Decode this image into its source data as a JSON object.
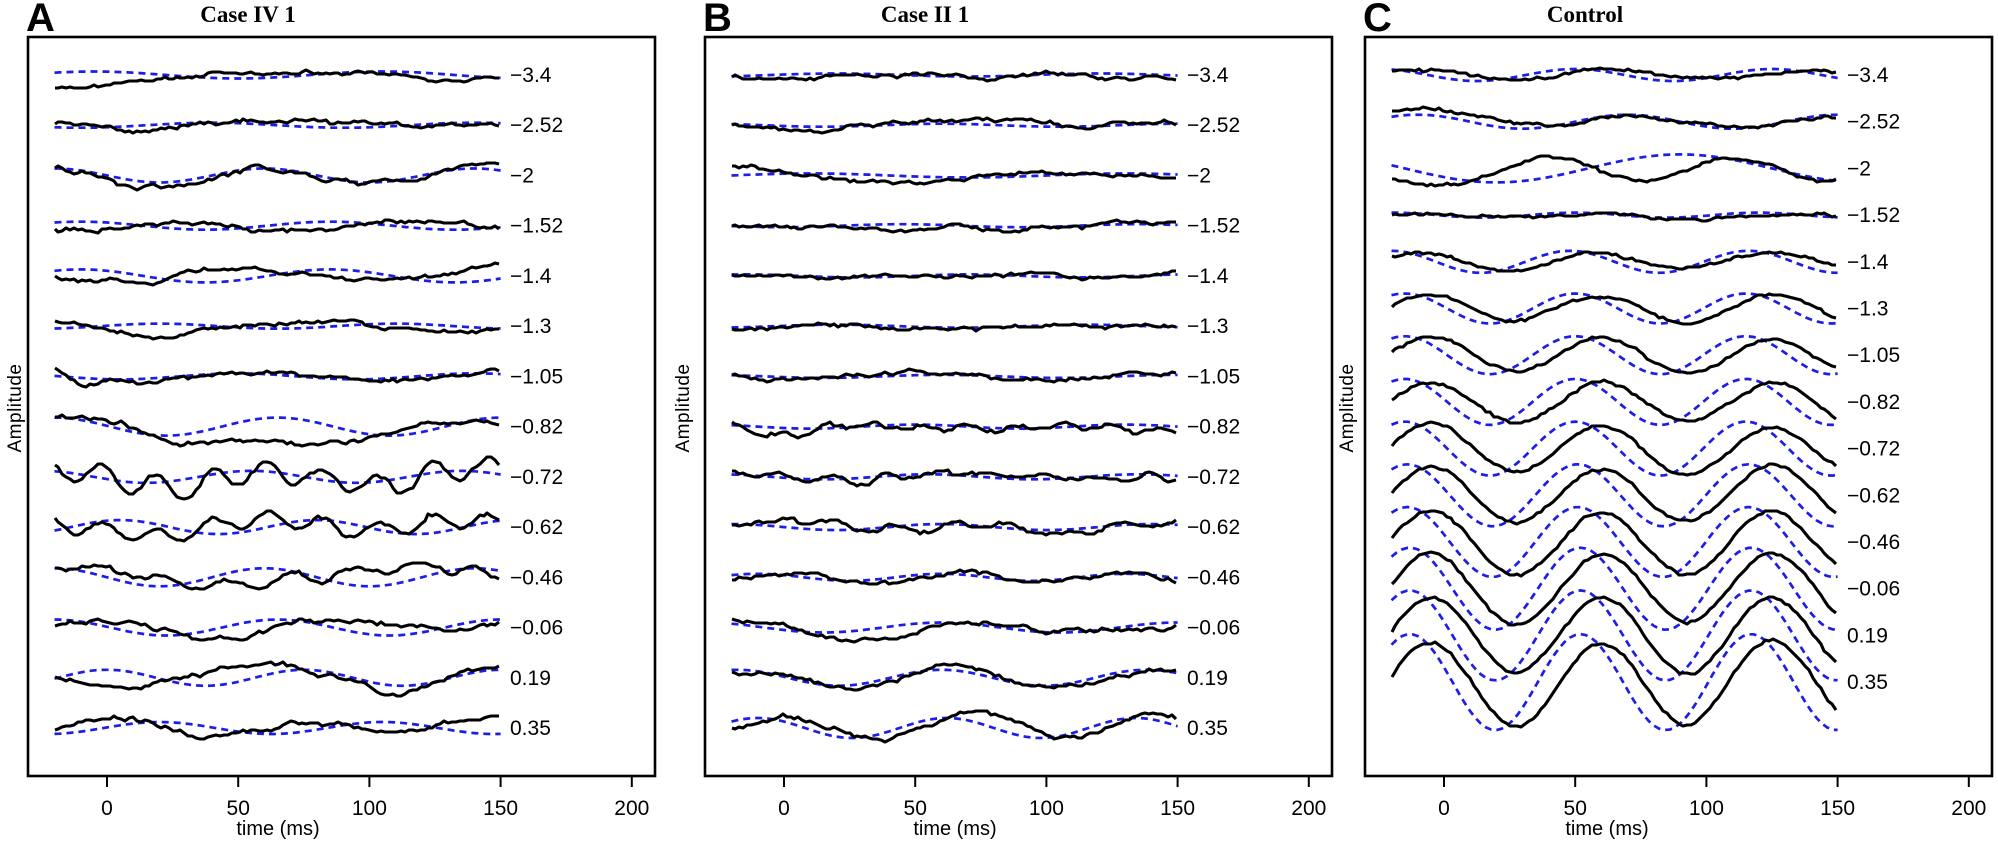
{
  "chart_data": {
    "type": "line",
    "xlabel": "time (ms)",
    "ylabel": "Amplitude",
    "x_ticks": [
      0,
      50,
      100,
      150,
      200
    ],
    "x_range_ms": [
      -20,
      150
    ],
    "amplitude_units": "arbitrary (px, unlabeled axis)",
    "legend": {
      "recorded_trace": "black solid",
      "model_trace": "blue dashed"
    },
    "colors": {
      "recorded": "#000000",
      "model": "#1d1de8",
      "background": "#ffffff",
      "text": "#000000"
    },
    "panels": [
      {
        "letter": "A",
        "title": "Case IV 1",
        "rows": [
          {
            "label": "−3.4",
            "black": {
              "amp": 3,
              "period": 120,
              "peak": 70,
              "noise": 1.6,
              "drift": [
                [
                  -20,
                  -13
                ],
                [
                  10,
                  -2
                ],
                [
                  40,
                  3
                ],
                [
                  150,
                  0
                ]
              ]
            },
            "blue": {
              "amp": 3.5,
              "period": 110,
              "peak": -5
            }
          },
          {
            "label": "−2.52",
            "black": {
              "amp": 4,
              "period": 110,
              "peak": 70,
              "noise": 1.6
            },
            "blue": {
              "amp": 2.5,
              "period": 100,
              "peak": 40
            }
          },
          {
            "label": "−2",
            "black": {
              "amp": 7,
              "period": 85,
              "peak": 60,
              "noise": 2.2,
              "drift": [
                [
                  -20,
                  2
                ],
                [
                  30,
                  -6
                ],
                [
                  60,
                  2
                ],
                [
                  150,
                  0
                ]
              ]
            },
            "blue": {
              "amp": 7,
              "period": 80,
              "peak": 60
            }
          },
          {
            "label": "−1.52",
            "black": {
              "amp": 6,
              "period": 95,
              "peak": 115,
              "noise": 2.0
            },
            "blue": {
              "amp": 4,
              "period": 95,
              "peak": -10
            }
          },
          {
            "label": "−1.4",
            "black": {
              "amp": 8,
              "period": 100,
              "peak": 55,
              "noise": 1.6
            },
            "blue": {
              "amp": 6.5,
              "period": 95,
              "peak": -10
            }
          },
          {
            "label": "−1.3",
            "black": {
              "amp": 7,
              "period": 110,
              "peak": 75,
              "noise": 1.6
            },
            "blue": {
              "amp": 2.5,
              "period": 90,
              "peak": 20
            }
          },
          {
            "label": "−1.05",
            "black": {
              "amp": 5,
              "period": 100,
              "peak": 60,
              "noise": 1.7,
              "drift": [
                [
                  -20,
                  8
                ],
                [
                  -10,
                  -8
                ],
                [
                  5,
                  0
                ],
                [
                  150,
                  0
                ]
              ]
            },
            "blue": {
              "amp": 3,
              "period": 90,
              "peak": 50
            }
          },
          {
            "label": "−0.82",
            "black": {
              "amp": 5,
              "period": 90,
              "peak": 130,
              "noise": 2.0,
              "drift": [
                [
                  -20,
                  14
                ],
                [
                  5,
                  10
                ],
                [
                  25,
                  -18
                ],
                [
                  60,
                  -16
                ],
                [
                  110,
                  -6
                ],
                [
                  150,
                  8
                ]
              ]
            },
            "blue": {
              "amp": 9,
              "period": 85,
              "peak": 65
            }
          },
          {
            "label": "−0.72",
            "black": {
              "amp": 6,
              "period": 80,
              "peak": 60,
              "noise": 2.2,
              "osc": {
                "amp": 11,
                "period": 21
              }
            },
            "blue": {
              "amp": 6,
              "period": 80,
              "peak": 55
            }
          },
          {
            "label": "−0.62",
            "black": {
              "amp": 5,
              "period": 80,
              "peak": 60,
              "noise": 2.0,
              "osc": {
                "amp": 8,
                "period": 21
              }
            },
            "blue": {
              "amp": 7,
              "period": 75,
              "peak": 5
            }
          },
          {
            "label": "−0.46",
            "black": {
              "amp": 11,
              "period": 130,
              "peak": -15,
              "noise": 2.2,
              "osc": {
                "amp": 4,
                "period": 24
              }
            },
            "blue": {
              "amp": 9,
              "period": 80,
              "peak": 60
            }
          },
          {
            "label": "−0.06",
            "black": {
              "amp": 6,
              "period": 85,
              "peak": 0,
              "noise": 2.2
            },
            "blue": {
              "amp": 8,
              "period": 85,
              "peak": 65
            }
          },
          {
            "label": "0.19",
            "black": {
              "amp": 8,
              "period": 100,
              "peak": 55,
              "noise": 2.0,
              "drift": [
                [
                  -20,
                  0
                ],
                [
                  90,
                  0
                ],
                [
                  110,
                  -12
                ],
                [
                  130,
                  4
                ],
                [
                  150,
                  6
                ]
              ]
            },
            "blue": {
              "amp": 8,
              "period": 75,
              "peak": 75
            }
          },
          {
            "label": "0.35",
            "black": {
              "amp": 7,
              "period": 70,
              "peak": 75,
              "noise": 2.0
            },
            "blue": {
              "amp": 6,
              "period": 85,
              "peak": 20
            }
          }
        ]
      },
      {
        "letter": "B",
        "title": "Case II 1",
        "rows": [
          {
            "label": "−3.4",
            "black": {
              "amp": 2,
              "period": 90,
              "peak": 30,
              "noise": 1.7
            },
            "blue": {
              "amp": 1.5,
              "period": 100,
              "peak": 20
            }
          },
          {
            "label": "−2.52",
            "black": {
              "amp": 2,
              "period": 80,
              "peak": 60,
              "noise": 1.7
            },
            "blue": {
              "amp": 1.5,
              "period": 90,
              "peak": 60
            }
          },
          {
            "label": "−2",
            "black": {
              "amp": 3,
              "period": 140,
              "peak": -15,
              "noise": 1.6,
              "drift": [
                [
                  -20,
                  5
                ],
                [
                  10,
                  3
                ],
                [
                  40,
                  -4
                ],
                [
                  150,
                  0
                ]
              ]
            },
            "blue": {
              "amp": 2,
              "period": 120,
              "peak": 10
            }
          },
          {
            "label": "−1.52",
            "black": {
              "amp": 1.5,
              "period": 90,
              "peak": 45,
              "noise": 1.6
            },
            "blue": {
              "amp": 1.5,
              "period": 90,
              "peak": 45
            }
          },
          {
            "label": "−1.4",
            "black": {
              "amp": 1.5,
              "period": 85,
              "peak": 70,
              "noise": 1.6
            },
            "blue": {
              "amp": 1.5,
              "period": 85,
              "peak": 70
            }
          },
          {
            "label": "−1.3",
            "black": {
              "amp": 1.5,
              "period": 95,
              "peak": 20,
              "noise": 1.6
            },
            "blue": {
              "amp": 1.5,
              "period": 95,
              "peak": 20
            }
          },
          {
            "label": "−1.05",
            "black": {
              "amp": 2,
              "period": 90,
              "peak": 60,
              "noise": 1.6
            },
            "blue": {
              "amp": 1.5,
              "period": 90,
              "peak": 60
            }
          },
          {
            "label": "−0.82",
            "black": {
              "amp": 3,
              "period": 70,
              "peak": 45,
              "noise": 2.1,
              "osc": {
                "amp": 3,
                "period": 18
              }
            },
            "blue": {
              "amp": 2,
              "period": 80,
              "peak": 50
            }
          },
          {
            "label": "−0.72",
            "black": {
              "amp": 3,
              "period": 75,
              "peak": 60,
              "noise": 2.1,
              "osc": {
                "amp": 3,
                "period": 20
              }
            },
            "blue": {
              "amp": 2.5,
              "period": 80,
              "peak": 55
            }
          },
          {
            "label": "−0.62",
            "black": {
              "amp": 4,
              "period": 80,
              "peak": 70,
              "noise": 2.0,
              "osc": {
                "amp": 3,
                "period": 22
              }
            },
            "blue": {
              "amp": 3,
              "period": 80,
              "peak": 60
            }
          },
          {
            "label": "−0.46",
            "black": {
              "amp": 5,
              "period": 65,
              "peak": 65,
              "noise": 2.0
            },
            "blue": {
              "amp": 3.5,
              "period": 70,
              "peak": 60
            }
          },
          {
            "label": "−0.06",
            "black": {
              "amp": 6,
              "period": 90,
              "peak": 70,
              "noise": 2.0
            },
            "blue": {
              "amp": 5,
              "period": 90,
              "peak": 60
            }
          },
          {
            "label": "0.19",
            "black": {
              "amp": 9,
              "period": 75,
              "peak": 65,
              "noise": 2.0
            },
            "blue": {
              "amp": 8,
              "period": 78,
              "peak": 60
            }
          },
          {
            "label": "0.35",
            "black": {
              "amp": 11,
              "period": 70,
              "peak": 70,
              "noise": 2.0
            },
            "blue": {
              "amp": 10,
              "period": 72,
              "peak": 62
            }
          }
        ]
      },
      {
        "letter": "C",
        "title": "Control",
        "rows": [
          {
            "label": "−3.4",
            "black": {
              "amp": 5,
              "period": 75,
              "peak": 62,
              "noise": 1.0
            },
            "blue": {
              "amp": 6,
              "period": 75,
              "peak": 50
            }
          },
          {
            "label": "−2.52",
            "black": {
              "amp": 6,
              "period": 80,
              "peak": 70,
              "noise": 0.9,
              "drift": [
                [
                  -20,
                  7
                ],
                [
                  15,
                  7
                ],
                [
                  45,
                  -2
                ],
                [
                  150,
                  0
                ]
              ]
            },
            "blue": {
              "amp": 7,
              "period": 80,
              "peak": 70
            }
          },
          {
            "label": "−2",
            "black": {
              "amp": 12,
              "period": 70,
              "peak": 40,
              "noise": 1.0,
              "drift": [
                [
                  -20,
                  -18
                ],
                [
                  0,
                  -6
                ],
                [
                  30,
                  0
                ],
                [
                  150,
                  0
                ]
              ]
            },
            "blue": {
              "amp": 14,
              "period": 140,
              "peak": 90
            }
          },
          {
            "label": "−1.52",
            "black": {
              "amp": 2.5,
              "period": 70,
              "peak": 60,
              "noise": 0.9
            },
            "blue": {
              "amp": 2.5,
              "period": 70,
              "peak": 50
            }
          },
          {
            "label": "−1.4",
            "black": {
              "amp": 9,
              "period": 68,
              "peak": 58,
              "noise": 0.9
            },
            "blue": {
              "amp": 11,
              "period": 68,
              "peak": 48
            }
          },
          {
            "label": "−1.3",
            "black": {
              "amp": 13,
              "period": 65,
              "peak": 60,
              "noise": 0.9
            },
            "blue": {
              "amp": 15,
              "period": 65,
              "peak": 50
            }
          },
          {
            "label": "−1.05",
            "black": {
              "amp": 17,
              "period": 65,
              "peak": 60,
              "noise": 0.9
            },
            "blue": {
              "amp": 19,
              "period": 65,
              "peak": 50
            }
          },
          {
            "label": "−0.82",
            "black": {
              "amp": 20,
              "period": 65,
              "peak": 60,
              "noise": 0.9
            },
            "blue": {
              "amp": 23,
              "period": 65,
              "peak": 50
            }
          },
          {
            "label": "−0.72",
            "black": {
              "amp": 23,
              "period": 65,
              "peak": 60,
              "noise": 0.9
            },
            "blue": {
              "amp": 27,
              "period": 65,
              "peak": 50
            }
          },
          {
            "label": "−0.62",
            "black": {
              "amp": 27,
              "period": 65,
              "peak": 60,
              "noise": 0.9
            },
            "blue": {
              "amp": 31,
              "period": 65,
              "peak": 51
            }
          },
          {
            "label": "−0.46",
            "black": {
              "amp": 31,
              "period": 65,
              "peak": 60,
              "noise": 0.9
            },
            "blue": {
              "amp": 35,
              "period": 65,
              "peak": 51
            }
          },
          {
            "label": "−0.06",
            "black": {
              "amp": 35,
              "period": 65,
              "peak": 60,
              "noise": 0.9
            },
            "blue": {
              "amp": 41,
              "period": 65,
              "peak": 52
            }
          },
          {
            "label": "0.19",
            "black": {
              "amp": 38,
              "period": 65,
              "peak": 60,
              "noise": 0.9
            },
            "blue": {
              "amp": 45,
              "period": 65,
              "peak": 52
            }
          },
          {
            "label": "0.35",
            "black": {
              "amp": 41,
              "period": 65,
              "peak": 60,
              "noise": 0.9
            },
            "blue": {
              "amp": 48,
              "period": 65,
              "peak": 52
            }
          }
        ]
      }
    ]
  }
}
